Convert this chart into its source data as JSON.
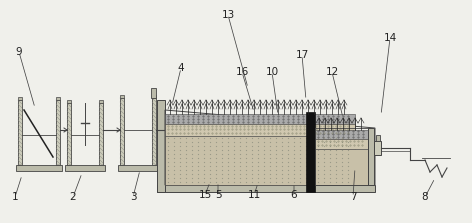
{
  "bg_color": "#f0f0eb",
  "line_color": "#444444",
  "dark_color": "#222222",
  "fill_hatch": "#aaaaaa",
  "fill_gravel": "#c8c0b0",
  "fill_dotted": "#d8d0b8",
  "fill_dark_layer": "#888880",
  "fill_black": "#111111",
  "label_fontsize": 7.5
}
